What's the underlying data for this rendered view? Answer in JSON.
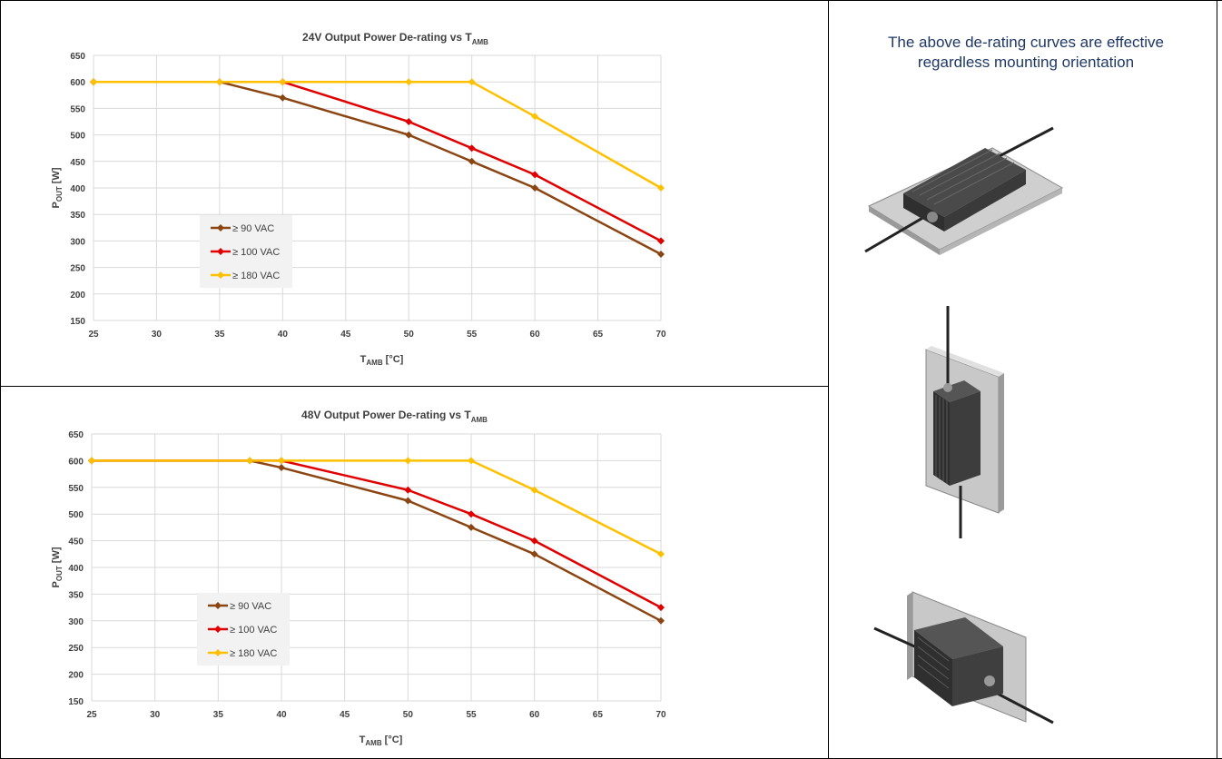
{
  "note": {
    "line1": "The above de-rating curves are effective",
    "line2": "regardless mounting orientation"
  },
  "orientation_images": [
    "horizontal-mount-illustration",
    "vertical-mount-illustration",
    "wall-mount-illustration"
  ],
  "chart_data": [
    {
      "type": "line",
      "title_main": "24V Output Power De-rating vs T",
      "title_sub": "AMB",
      "ylabel_main": "P",
      "ylabel_sub": "OUT",
      "ylabel_rest": " [W]",
      "xlabel_main": "T",
      "xlabel_sub": "AMB",
      "xlabel_rest": " [°C]",
      "xlim": [
        25,
        70
      ],
      "ylim": [
        150,
        650
      ],
      "xticks": [
        25,
        30,
        35,
        40,
        45,
        50,
        55,
        60,
        65,
        70
      ],
      "yticks": [
        150,
        200,
        250,
        300,
        350,
        400,
        450,
        500,
        550,
        600,
        650
      ],
      "grid": true,
      "legend_position": "left-center",
      "series": [
        {
          "name": "≥ 90 VAC",
          "color": "#8b4513",
          "x": [
            25,
            35,
            40,
            50,
            55,
            60,
            70
          ],
          "y": [
            600,
            600,
            570,
            500,
            450,
            400,
            275
          ]
        },
        {
          "name": "≥ 100 VAC",
          "color": "#e00000",
          "x": [
            25,
            40,
            50,
            55,
            60,
            70
          ],
          "y": [
            600,
            600,
            525,
            475,
            425,
            300
          ]
        },
        {
          "name": "≥ 180 VAC",
          "color": "#ffc000",
          "x": [
            25,
            35,
            40,
            50,
            55,
            60,
            70
          ],
          "y": [
            600,
            600,
            600,
            600,
            600,
            535,
            400
          ]
        }
      ]
    },
    {
      "type": "line",
      "title_main": "48V Output Power De-rating vs T",
      "title_sub": "AMB",
      "ylabel_main": "P",
      "ylabel_sub": "OUT",
      "ylabel_rest": " [W]",
      "xlabel_main": "T",
      "xlabel_sub": "AMB",
      "xlabel_rest": " [°C]",
      "xlim": [
        25,
        70
      ],
      "ylim": [
        150,
        650
      ],
      "xticks": [
        25,
        30,
        35,
        40,
        45,
        50,
        55,
        60,
        65,
        70
      ],
      "yticks": [
        150,
        200,
        250,
        300,
        350,
        400,
        450,
        500,
        550,
        600,
        650
      ],
      "grid": true,
      "legend_position": "left-center",
      "series": [
        {
          "name": "≥ 90 VAC",
          "color": "#8b4513",
          "x": [
            25,
            37.5,
            40,
            50,
            55,
            60,
            70
          ],
          "y": [
            600,
            600,
            587,
            525,
            475,
            425,
            300
          ]
        },
        {
          "name": "≥ 100 VAC",
          "color": "#e00000",
          "x": [
            25,
            40,
            50,
            55,
            60,
            70
          ],
          "y": [
            600,
            600,
            545,
            500,
            450,
            325
          ]
        },
        {
          "name": "≥ 180 VAC",
          "color": "#ffc000",
          "x": [
            25,
            37.5,
            40,
            50,
            55,
            60,
            70
          ],
          "y": [
            600,
            600,
            600,
            600,
            600,
            545,
            425
          ]
        }
      ]
    }
  ]
}
